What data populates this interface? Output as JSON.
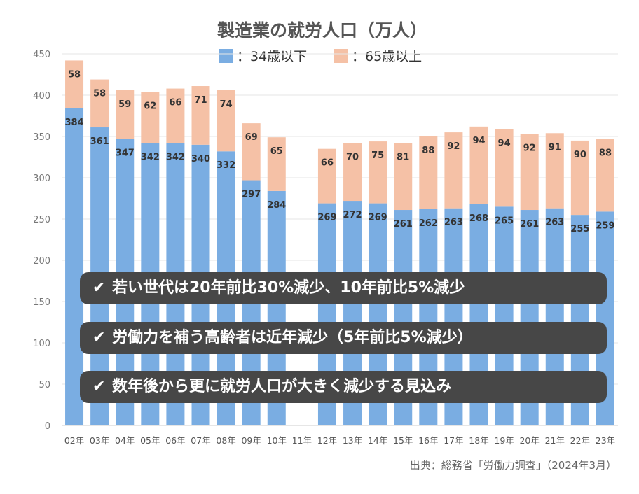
{
  "chart_data": {
    "type": "bar",
    "stacked": true,
    "title": "製造業の就労人口（万人）",
    "categories": [
      "02年",
      "03年",
      "04年",
      "05年",
      "06年",
      "07年",
      "08年",
      "09年",
      "10年",
      "11年",
      "12年",
      "13年",
      "14年",
      "15年",
      "16年",
      "17年",
      "18年",
      "19年",
      "20年",
      "21年",
      "22年",
      "23年"
    ],
    "series": [
      {
        "name": "：34歳以下",
        "color": "#7AADE2",
        "values": [
          384,
          361,
          347,
          342,
          342,
          340,
          332,
          297,
          284,
          null,
          269,
          272,
          269,
          261,
          262,
          263,
          268,
          265,
          261,
          263,
          255,
          259
        ]
      },
      {
        "name": "：65歳以上",
        "color": "#F5C1A6",
        "values": [
          58,
          58,
          59,
          62,
          66,
          71,
          74,
          69,
          65,
          null,
          66,
          70,
          75,
          81,
          88,
          92,
          94,
          94,
          92,
          91,
          90,
          88
        ]
      }
    ],
    "ylim": [
      0,
      450
    ],
    "yticks": [
      0,
      50,
      100,
      150,
      200,
      250,
      300,
      350,
      400,
      450
    ],
    "grid": true,
    "legend": "top-center",
    "xlabel": "",
    "ylabel": ""
  },
  "callouts": [
    {
      "check": "✔",
      "text": "若い世代は20年前比30%減少、10年前比5%減少"
    },
    {
      "check": "✔",
      "text": "労働力を補う高齢者は近年減少（5年前比5%減少）"
    },
    {
      "check": "✔",
      "text": "数年後から更に就労人口が大きく減少する見込み"
    }
  ],
  "source": "出典：総務省「労働力調査」（2024年3月）"
}
